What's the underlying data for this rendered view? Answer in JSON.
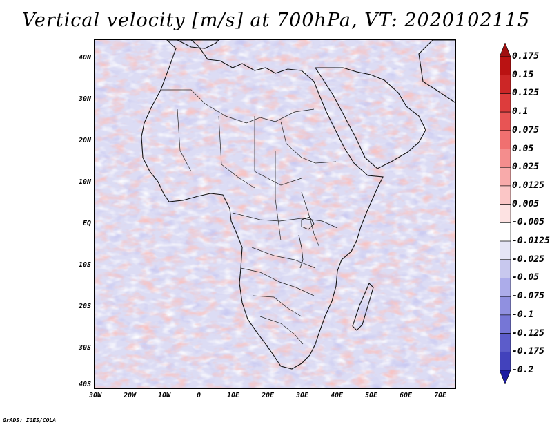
{
  "title": "Vertical velocity [m/s] at 700hPa, VT: 2020102115",
  "map": {
    "lat_labels": [
      "40N",
      "30N",
      "20N",
      "10N",
      "EQ",
      "10S",
      "20S",
      "30S",
      "40S"
    ],
    "lon_labels": [
      "30W",
      "20W",
      "10W",
      "0",
      "10E",
      "20E",
      "30E",
      "40E",
      "50E",
      "60E",
      "70E"
    ],
    "extent": {
      "lon_min": -30,
      "lon_max": 75,
      "lat_min": -40,
      "lat_max": 44
    }
  },
  "colorbar": {
    "levels": [
      {
        "value": "0.175",
        "color": "#ba1212"
      },
      {
        "value": "0.15",
        "color": "#cc2626"
      },
      {
        "value": "0.125",
        "color": "#dd3c3c"
      },
      {
        "value": "0.1",
        "color": "#e85454"
      },
      {
        "value": "0.075",
        "color": "#f07070"
      },
      {
        "value": "0.05",
        "color": "#f48d8d"
      },
      {
        "value": "0.025",
        "color": "#f8aaaa"
      },
      {
        "value": "0.0125",
        "color": "#fbc6c6"
      },
      {
        "value": "0.005",
        "color": "#fde2e2"
      },
      {
        "value": "-0.005",
        "color": "#ffffff"
      },
      {
        "value": "-0.0125",
        "color": "#e4e4f6"
      },
      {
        "value": "-0.025",
        "color": "#c8c8ee"
      },
      {
        "value": "-0.05",
        "color": "#acacea"
      },
      {
        "value": "-0.075",
        "color": "#9090e0"
      },
      {
        "value": "-0.1",
        "color": "#7676d6"
      },
      {
        "value": "-0.125",
        "color": "#5c5cca"
      },
      {
        "value": "-0.175",
        "color": "#4242bc"
      },
      {
        "value": "-0.2",
        "color": "#2a2aae"
      }
    ],
    "top_color": "#a01010",
    "bottom_color": "#1c1ca0"
  },
  "footer": "GrADS: IGES/COLA"
}
